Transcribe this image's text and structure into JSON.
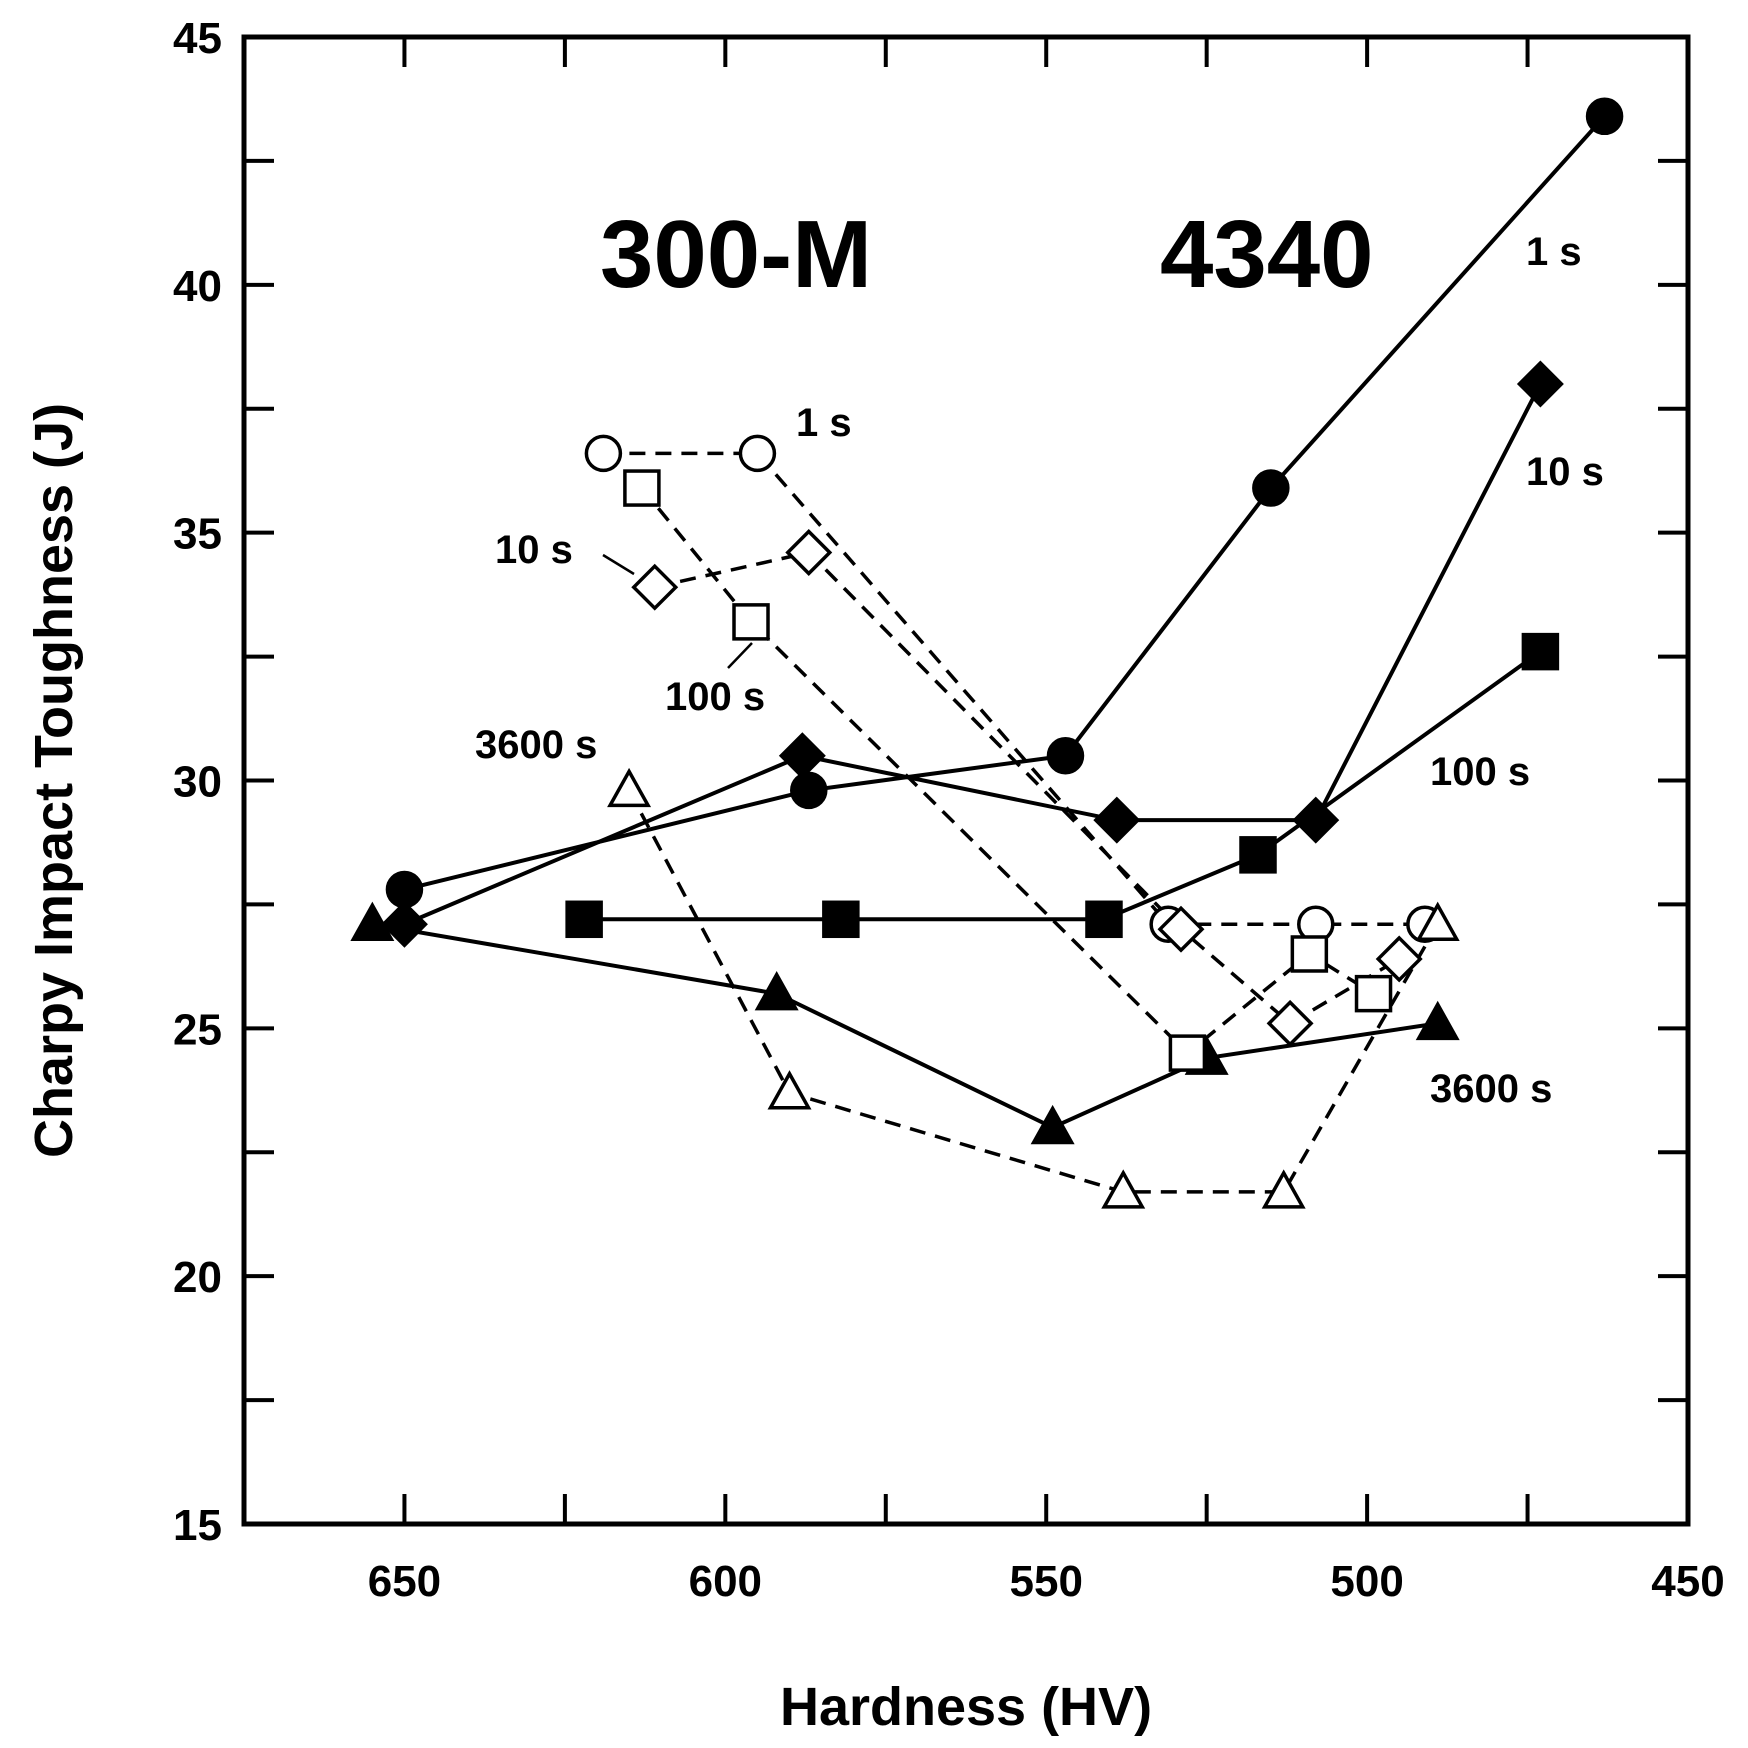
{
  "chart_data": {
    "type": "line",
    "title": "",
    "xlabel": "Hardness (HV)",
    "ylabel": "Charpy Impact Toughness (J)",
    "xlim": [
      675,
      450
    ],
    "ylim": [
      15,
      45
    ],
    "x_reversed": true,
    "x_ticks": [
      650,
      600,
      550,
      500,
      450
    ],
    "x_minor_ticks": [
      625,
      575,
      525,
      475
    ],
    "y_ticks": [
      15,
      20,
      25,
      30,
      35,
      40,
      45
    ],
    "y_minor_ticks": [
      17.5,
      22.5,
      27.5,
      32.5,
      37.5,
      42.5
    ],
    "grid": false,
    "group_labels": [
      "300-M",
      "4340"
    ],
    "series": [
      {
        "name": "4340 1 s",
        "group": "4340",
        "label": "1 s",
        "marker": "circle",
        "filled": true,
        "line": "solid",
        "x": [
          650,
          587,
          547,
          515,
          463
        ],
        "y": [
          27.8,
          29.8,
          30.5,
          35.9,
          43.4
        ]
      },
      {
        "name": "4340 10 s",
        "group": "4340",
        "label": "10 s",
        "marker": "diamond",
        "filled": true,
        "line": "solid",
        "x": [
          650,
          588,
          539,
          508,
          473
        ],
        "y": [
          27.1,
          30.5,
          29.2,
          29.2,
          38.0
        ]
      },
      {
        "name": "4340 100 s",
        "group": "4340",
        "label": "100 s",
        "marker": "square",
        "filled": true,
        "line": "solid",
        "x": [
          622,
          582,
          541,
          517,
          473
        ],
        "y": [
          27.2,
          27.2,
          27.2,
          28.5,
          32.6
        ]
      },
      {
        "name": "4340 3600 s",
        "group": "4340",
        "label": "3600 s",
        "marker": "triangle",
        "filled": true,
        "line": "solid",
        "x": [
          655,
          592,
          549,
          525,
          489
        ],
        "y": [
          27.1,
          25.7,
          23.0,
          24.4,
          25.1
        ]
      },
      {
        "name": "300-M 1 s",
        "group": "300-M",
        "label": "1 s",
        "marker": "circle",
        "filled": false,
        "line": "dashed",
        "x": [
          619,
          595,
          531,
          508,
          491
        ],
        "y": [
          36.6,
          36.6,
          27.1,
          27.1,
          27.1
        ]
      },
      {
        "name": "300-M 10 s",
        "group": "300-M",
        "label": "10 s",
        "marker": "diamond",
        "filled": false,
        "line": "dashed",
        "x": [
          611,
          587,
          529,
          512,
          495
        ],
        "y": [
          33.9,
          34.6,
          27.0,
          25.1,
          26.4
        ]
      },
      {
        "name": "300-M 100 s",
        "group": "300-M",
        "label": "100 s",
        "marker": "square",
        "filled": false,
        "line": "dashed",
        "x": [
          613,
          596,
          528,
          509,
          499
        ],
        "y": [
          35.9,
          33.2,
          24.5,
          26.5,
          25.7
        ]
      },
      {
        "name": "300-M 3600 s",
        "group": "300-M",
        "label": "3600 s",
        "marker": "triangle",
        "filled": false,
        "line": "dashed",
        "x": [
          615,
          590,
          538,
          513,
          489
        ],
        "y": [
          29.8,
          23.7,
          21.7,
          21.7,
          27.1
        ]
      }
    ]
  }
}
